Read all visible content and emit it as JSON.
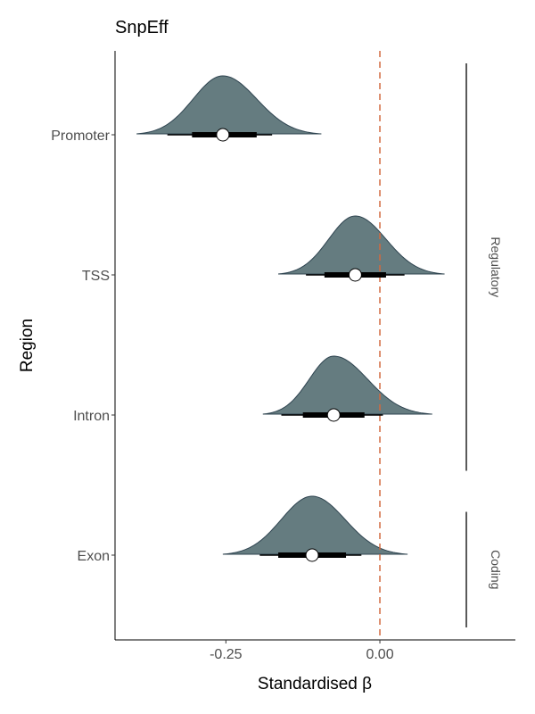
{
  "chart_data": {
    "type": "halfeye",
    "title": "SnpEff",
    "xlabel": "Standardised β",
    "ylabel": "Region",
    "xlim": [
      -0.43,
      0.22
    ],
    "x_ticks": [
      {
        "value": -0.25,
        "label": "-0.25"
      },
      {
        "value": 0.0,
        "label": "0.00"
      }
    ],
    "reference_line": {
      "x": 0.0,
      "style": "dashed",
      "color": "#d2693d"
    },
    "fill_color": "#657c80",
    "outline_color": "#2f4450",
    "series": [
      {
        "category": "Promoter",
        "mode": -0.255,
        "median": -0.255,
        "ci66": [
          -0.305,
          -0.2
        ],
        "ci95": [
          -0.345,
          -0.175
        ],
        "range": [
          -0.395,
          -0.095
        ]
      },
      {
        "category": "TSS",
        "mode": -0.04,
        "median": -0.04,
        "ci66": [
          -0.09,
          0.01
        ],
        "ci95": [
          -0.12,
          0.04
        ],
        "range": [
          -0.165,
          0.105
        ]
      },
      {
        "category": "Intron",
        "mode": -0.075,
        "median": -0.075,
        "ci66": [
          -0.125,
          -0.025
        ],
        "ci95": [
          -0.16,
          0.005
        ],
        "range": [
          -0.19,
          0.085
        ]
      },
      {
        "category": "Exon",
        "mode": -0.11,
        "median": -0.11,
        "ci66": [
          -0.165,
          -0.055
        ],
        "ci95": [
          -0.195,
          -0.03
        ],
        "range": [
          -0.255,
          0.045
        ]
      }
    ],
    "groups": [
      {
        "label": "Regulatory",
        "categories": [
          "Promoter",
          "TSS",
          "Intron"
        ]
      },
      {
        "label": "Coding",
        "categories": [
          "Exon"
        ]
      }
    ]
  }
}
